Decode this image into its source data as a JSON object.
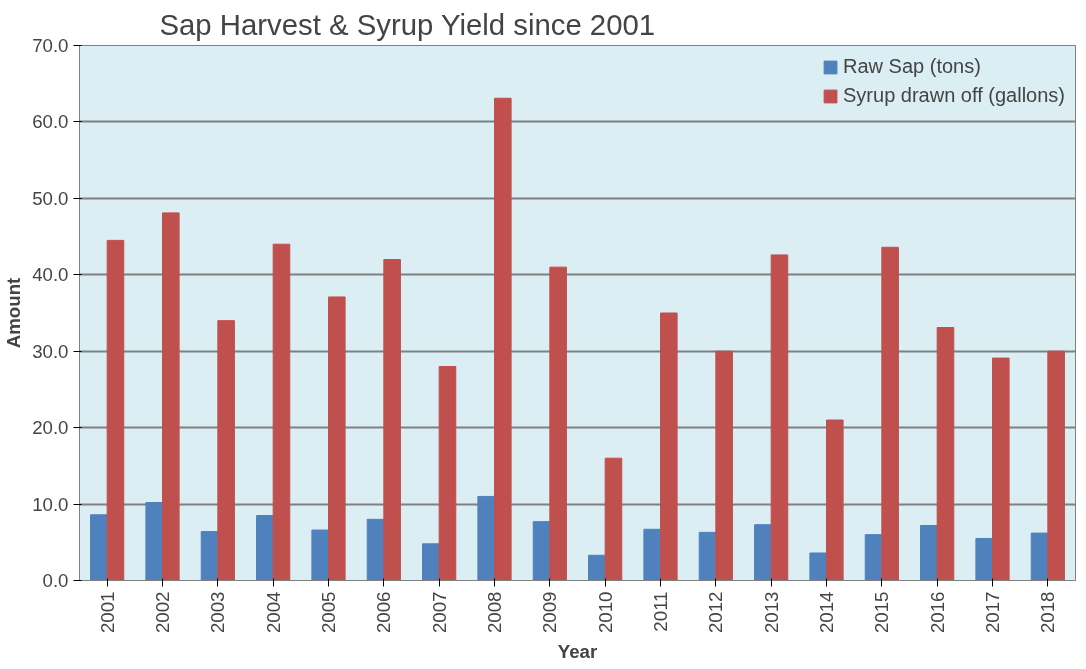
{
  "chart_data": {
    "type": "bar",
    "title": "Sap Harvest & Syrup Yield since 2001",
    "xlabel": "Year",
    "ylabel": "Amount",
    "categories": [
      "2001",
      "2002",
      "2003",
      "2004",
      "2005",
      "2006",
      "2007",
      "2008",
      "2009",
      "2010",
      "2011",
      "2012",
      "2013",
      "2014",
      "2015",
      "2016",
      "2017",
      "2018"
    ],
    "series": [
      {
        "name": "Raw Sap (tons)",
        "color": "#4f81bd",
        "values": [
          8.6,
          10.2,
          6.4,
          8.5,
          6.6,
          8.0,
          4.8,
          11.0,
          7.7,
          3.3,
          6.7,
          6.3,
          7.3,
          3.6,
          6.0,
          7.2,
          5.5,
          6.2
        ]
      },
      {
        "name": "Syrup drawn off (gallons)",
        "color": "#c0504d",
        "values": [
          44.5,
          48.1,
          34.0,
          44.0,
          37.1,
          42.0,
          28.0,
          63.1,
          41.0,
          16.0,
          35.0,
          30.0,
          42.6,
          21.0,
          43.6,
          33.1,
          29.1,
          30.0
        ]
      }
    ],
    "ylim": [
      0,
      70
    ],
    "yticks": [
      {
        "value": 0,
        "label": "0.0"
      },
      {
        "value": 10,
        "label": "10.0"
      },
      {
        "value": 20,
        "label": "20.0"
      },
      {
        "value": 30,
        "label": "30.0"
      },
      {
        "value": 40,
        "label": "40.0"
      },
      {
        "value": 50,
        "label": "50.0"
      },
      {
        "value": 60,
        "label": "60.0"
      },
      {
        "value": 70,
        "label": "70.0"
      }
    ],
    "grid": "y",
    "legend": "top right"
  }
}
